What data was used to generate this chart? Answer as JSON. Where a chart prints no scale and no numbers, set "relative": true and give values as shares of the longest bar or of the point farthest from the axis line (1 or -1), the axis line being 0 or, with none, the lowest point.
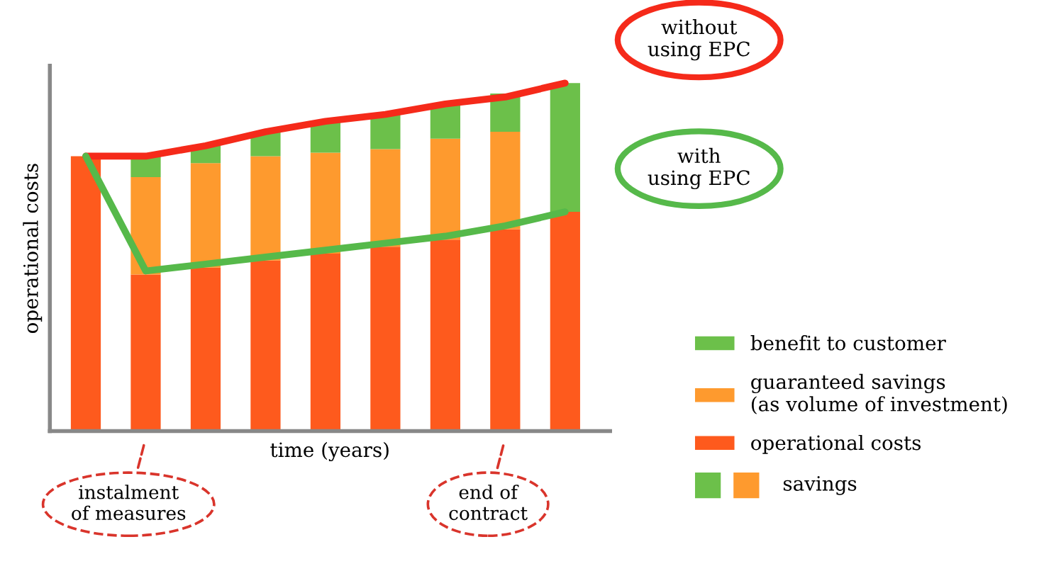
{
  "chart_data": [
    {
      "type": "bar",
      "stacked": true,
      "relative": true,
      "xlabel": "time (years)",
      "ylabel": "operational costs",
      "legend": "right",
      "grid": false,
      "categories": [
        null,
        null,
        null,
        null,
        null,
        null,
        null,
        null,
        null
      ],
      "series": [
        {
          "name": "operational costs",
          "color": "#fe5a1d",
          "values": [
            0.79,
            0.45,
            0.47,
            0.49,
            0.51,
            0.53,
            0.55,
            0.58,
            0.63
          ]
        },
        {
          "name": "guaranteed savings\n(as volume of investment)",
          "color": "#fe9a2e",
          "values": [
            null,
            0.28,
            0.3,
            0.3,
            0.29,
            0.28,
            0.29,
            0.28,
            null
          ]
        },
        {
          "name": "benefit to customer",
          "color": "#6cc04a",
          "values": [
            null,
            0.06,
            0.05,
            0.07,
            0.09,
            0.1,
            0.1,
            0.11,
            0.37
          ]
        }
      ],
      "annotations": [
        "instalment\nof measures",
        "end of\ncontract",
        "savings"
      ]
    },
    {
      "type": "line",
      "relative": true,
      "categories": [
        null,
        null,
        null,
        null,
        null,
        null,
        null,
        null,
        null
      ],
      "series": [
        {
          "name": "without\nusing EPC",
          "color": "#f52a1a",
          "values": [
            0.79,
            0.79,
            0.82,
            0.86,
            0.89,
            0.91,
            0.94,
            0.96,
            1.0
          ]
        },
        {
          "name": "with\nusing EPC",
          "color": "#56b94a",
          "values": [
            0.79,
            0.46,
            0.48,
            0.5,
            0.52,
            0.54,
            0.56,
            0.59,
            0.63
          ]
        }
      ]
    }
  ]
}
